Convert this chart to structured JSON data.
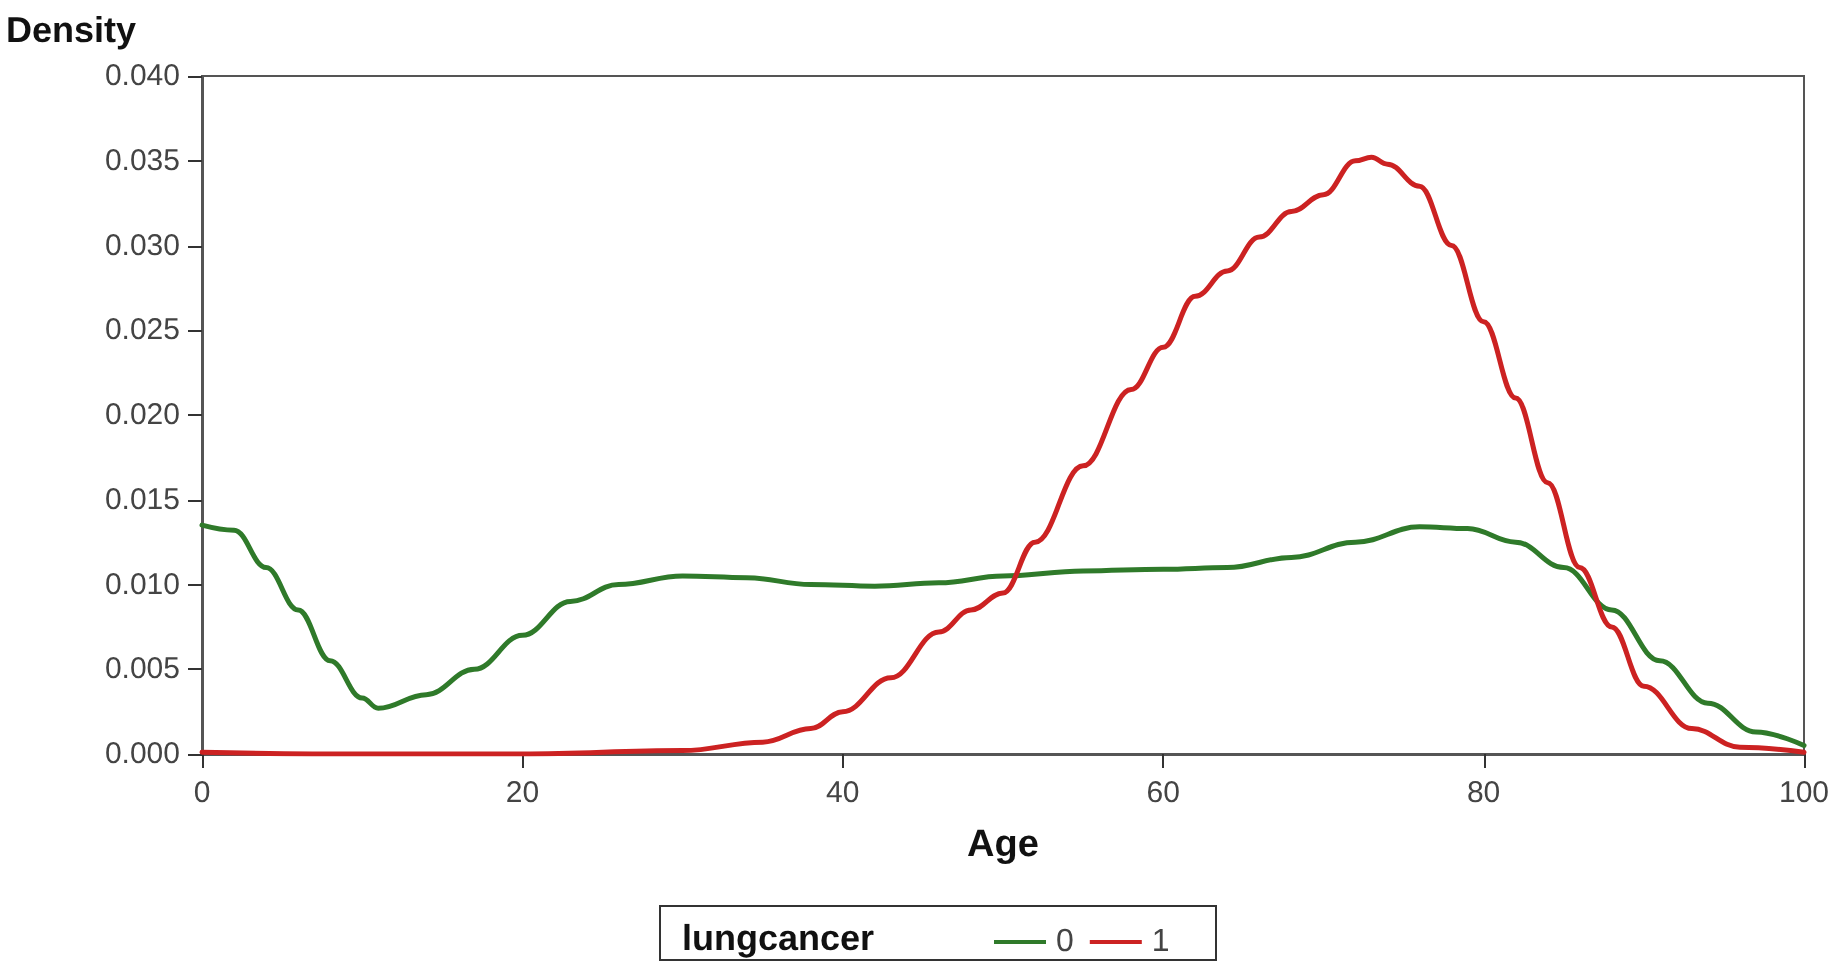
{
  "chart_data": {
    "type": "line",
    "xlabel": "Age",
    "ylabel": "Density",
    "legend_title": "lungcancer",
    "legend": "bottom",
    "grid": false,
    "marker": "none",
    "line_style": "solid",
    "xlim": [
      0,
      100
    ],
    "xticks": [
      0,
      20,
      40,
      60,
      80,
      100
    ],
    "ylim": [
      0,
      0.04
    ],
    "yticks": [
      {
        "value": 0,
        "label": "0.000"
      },
      {
        "value": 0.005,
        "label": "0.005"
      },
      {
        "value": 0.01,
        "label": "0.010"
      },
      {
        "value": 0.015,
        "label": "0.015"
      },
      {
        "value": 0.02,
        "label": "0.020"
      },
      {
        "value": 0.025,
        "label": "0.025"
      },
      {
        "value": 0.03,
        "label": "0.030"
      },
      {
        "value": 0.035,
        "label": "0.035"
      },
      {
        "value": 0.04,
        "label": "0.040"
      }
    ],
    "series": [
      {
        "name": "0",
        "color": "#2f7a2a",
        "x": [
          0,
          2,
          4,
          6,
          8,
          10,
          11,
          14,
          17,
          20,
          23,
          26,
          30,
          34,
          38,
          42,
          46,
          50,
          55,
          60,
          64,
          68,
          72,
          76,
          79,
          82,
          85,
          88,
          91,
          94,
          97,
          100
        ],
        "values": [
          0.0135,
          0.0132,
          0.011,
          0.0085,
          0.0055,
          0.0033,
          0.0027,
          0.0035,
          0.005,
          0.007,
          0.009,
          0.01,
          0.0105,
          0.0104,
          0.01,
          0.0099,
          0.0101,
          0.0105,
          0.0108,
          0.0109,
          0.011,
          0.0116,
          0.0125,
          0.0134,
          0.0133,
          0.0125,
          0.011,
          0.0085,
          0.0055,
          0.003,
          0.0013,
          0.0005
        ]
      },
      {
        "name": "1",
        "color": "#cc2222",
        "x": [
          0,
          10,
          20,
          30,
          35,
          38,
          40,
          43,
          46,
          48,
          50,
          52,
          55,
          58,
          60,
          62,
          64,
          66,
          68,
          70,
          72,
          73,
          74,
          76,
          78,
          80,
          82,
          84,
          86,
          88,
          90,
          93,
          96,
          100
        ],
        "values": [
          0.0001,
          0,
          0,
          0.0002,
          0.0007,
          0.0015,
          0.0025,
          0.0045,
          0.0072,
          0.0085,
          0.0095,
          0.0125,
          0.017,
          0.0215,
          0.024,
          0.027,
          0.0285,
          0.0305,
          0.032,
          0.033,
          0.035,
          0.0352,
          0.0348,
          0.0335,
          0.03,
          0.0255,
          0.021,
          0.016,
          0.011,
          0.0075,
          0.004,
          0.0015,
          0.0004,
          0.0001
        ]
      }
    ]
  }
}
